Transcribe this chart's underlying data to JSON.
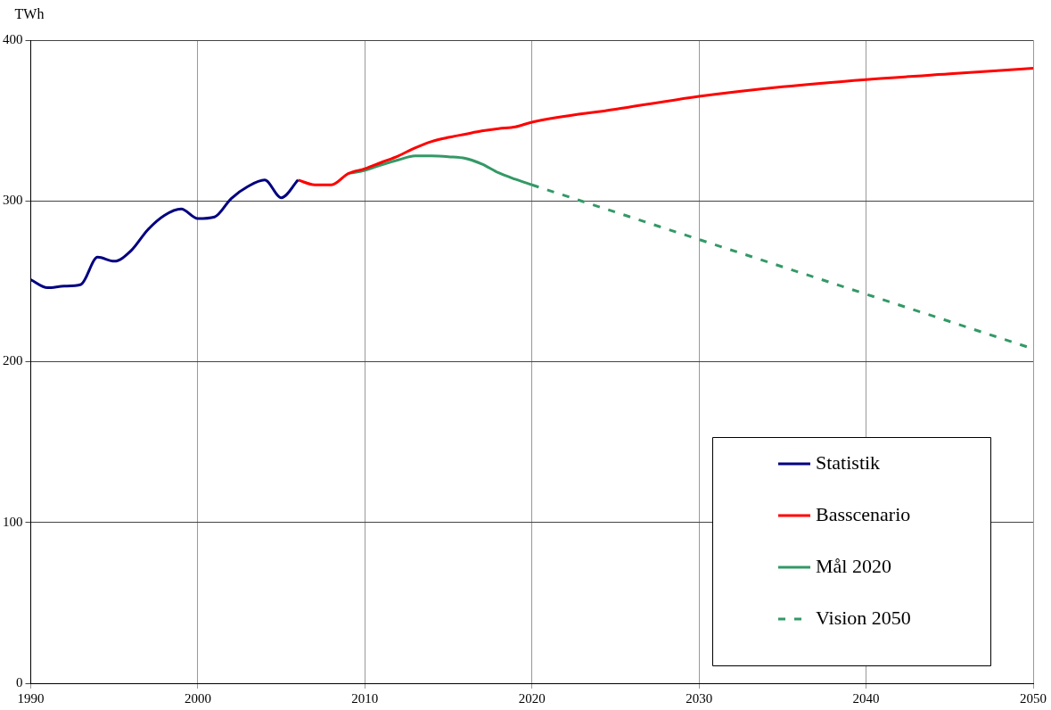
{
  "chart_data": {
    "type": "line",
    "ylabel": "TWh",
    "xlim": [
      1990,
      2050
    ],
    "ylim": [
      0,
      400
    ],
    "xticks": [
      1990,
      2000,
      2010,
      2020,
      2030,
      2040,
      2050
    ],
    "yticks": [
      0,
      100,
      200,
      300,
      400
    ],
    "grid": true,
    "legend": "bottom right",
    "marker": "none",
    "line_style": "solid",
    "series": [
      {
        "name": "Statistik",
        "color": "#000080",
        "x": [
          1990,
          1991,
          1992,
          1993,
          1994,
          1995,
          1996,
          1997,
          1998,
          1999,
          2000,
          2001,
          2002,
          2003,
          2004,
          2005,
          2006
        ],
        "values": [
          251,
          246,
          247,
          248,
          265,
          262.5,
          269,
          282,
          291,
          295,
          289,
          290,
          301.5,
          309,
          313,
          302,
          313
        ]
      },
      {
        "name": "Basscenario",
        "color": "#ff0000",
        "x": [
          2006,
          2007,
          2008,
          2009,
          2010,
          2011,
          2012,
          2013,
          2014,
          2015,
          2016,
          2017,
          2018,
          2019,
          2020,
          2025,
          2030,
          2035,
          2040,
          2045,
          2050
        ],
        "values": [
          313,
          310,
          310,
          317,
          320,
          324,
          328,
          333,
          337,
          339.5,
          341.5,
          343.5,
          345,
          346,
          349,
          357,
          365,
          371,
          375.5,
          379,
          382.5
        ]
      },
      {
        "name": "Mål 2020",
        "color": "#339966",
        "x": [
          2009,
          2010,
          2011,
          2012,
          2013,
          2014,
          2015,
          2016,
          2017,
          2018,
          2019,
          2020
        ],
        "values": [
          317,
          319,
          322.5,
          325.5,
          328,
          328,
          327.5,
          326.5,
          323,
          317.5,
          313.5,
          310
        ]
      },
      {
        "name": "Vision 2050",
        "color": "#339966",
        "line_style": "dashed",
        "x": [
          2020,
          2050
        ],
        "values": [
          310,
          208
        ]
      }
    ]
  }
}
